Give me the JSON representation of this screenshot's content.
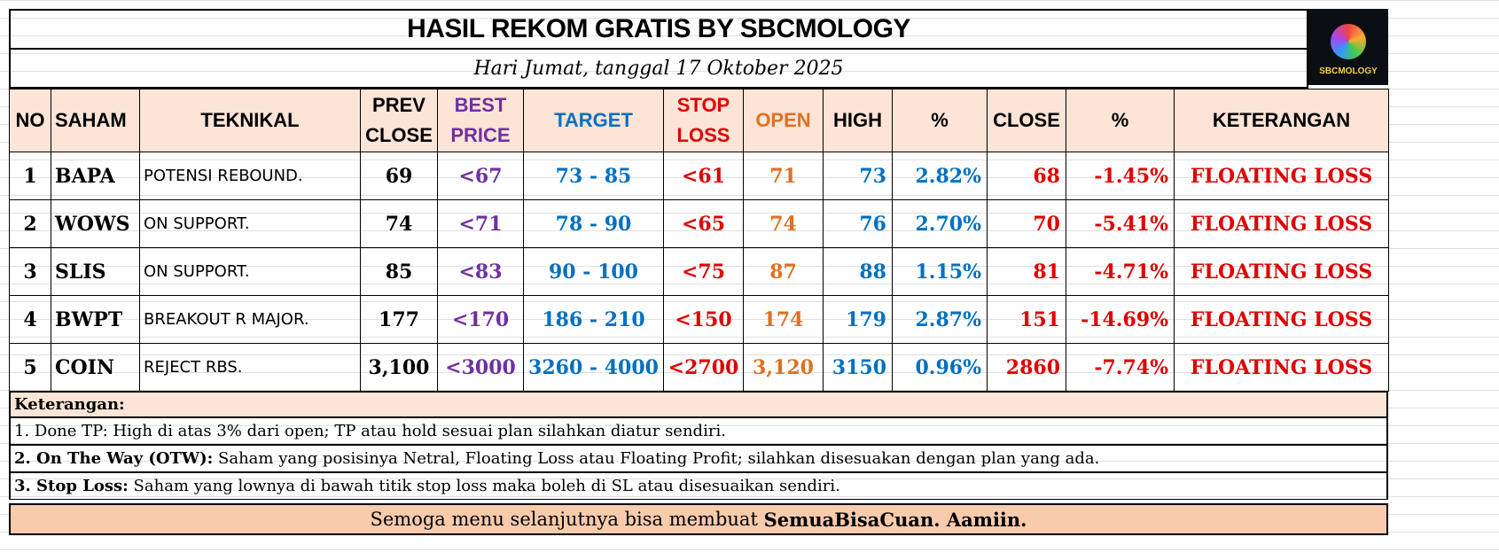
{
  "header": {
    "title": "HASIL REKOM GRATIS BY SBCMOLOGY",
    "subtitle": "Hari Jumat, tanggal 17 Oktober 2025",
    "logo_text": "SBCMOLOGY"
  },
  "columns": [
    "NO",
    "SAHAM",
    "TEKNIKAL",
    "PREV CLOSE",
    "BEST PRICE",
    "TARGET",
    "STOP LOSS",
    "OPEN",
    "HIGH",
    "%",
    "CLOSE",
    "%",
    "KETERANGAN"
  ],
  "column_lines": {
    "prev": [
      "PREV",
      "CLOSE"
    ],
    "best": [
      "BEST",
      "PRICE"
    ],
    "stop": [
      "STOP",
      "LOSS"
    ]
  },
  "rows": [
    {
      "no": "1",
      "saham": "BAPA",
      "teknikal": "POTENSI REBOUND.",
      "prev": "69",
      "best": "<67",
      "target": "73 - 85",
      "stop": "<61",
      "open": "71",
      "high": "73",
      "pct_high": "2.82%",
      "close": "68",
      "pct_close": "-1.45%",
      "ket": "FLOATING LOSS"
    },
    {
      "no": "2",
      "saham": "WOWS",
      "teknikal": "ON SUPPORT.",
      "prev": "74",
      "best": "<71",
      "target": "78 - 90",
      "stop": "<65",
      "open": "74",
      "high": "76",
      "pct_high": "2.70%",
      "close": "70",
      "pct_close": "-5.41%",
      "ket": "FLOATING LOSS"
    },
    {
      "no": "3",
      "saham": "SLIS",
      "teknikal": "ON SUPPORT.",
      "prev": "85",
      "best": "<83",
      "target": "90 - 100",
      "stop": "<75",
      "open": "87",
      "high": "88",
      "pct_high": "1.15%",
      "close": "81",
      "pct_close": "-4.71%",
      "ket": "FLOATING LOSS"
    },
    {
      "no": "4",
      "saham": "BWPT",
      "teknikal": "BREAKOUT R MAJOR.",
      "prev": "177",
      "best": "<170",
      "target": "186 - 210",
      "stop": "<150",
      "open": "174",
      "high": "179",
      "pct_high": "2.87%",
      "close": "151",
      "pct_close": "-14.69%",
      "ket": "FLOATING LOSS"
    },
    {
      "no": "5",
      "saham": "COIN",
      "teknikal": "REJECT RBS.",
      "prev": "3,100",
      "best": "<3000",
      "target": "3260 - 4000",
      "stop": "<2700",
      "open": "3,120",
      "high": "3150",
      "pct_high": "0.96%",
      "close": "2860",
      "pct_close": "-7.74%",
      "ket": "FLOATING LOSS"
    }
  ],
  "notes": {
    "heading": "Keterangan:",
    "n1": "1. Done TP: High di atas 3% dari open; TP atau hold sesuai plan silahkan diatur sendiri.",
    "n2_bold": "2. On The Way (OTW):",
    "n2": " Saham yang posisinya Netral, Floating Loss atau Floating Profit; silahkan disesuakan dengan plan yang ada.",
    "n3_bold": "3. Stop Loss:",
    "n3": " Saham yang lownya di bawah titik stop loss maka boleh di SL atau disesuaikan sendiri."
  },
  "footer": {
    "text": "Semoga menu selanjutnya bisa membuat ",
    "bold": "SemuaBisaCuan. Aamiin."
  }
}
